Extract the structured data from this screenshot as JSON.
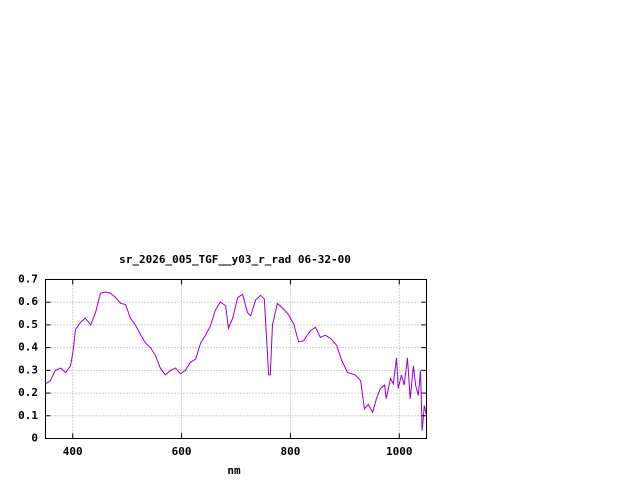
{
  "chart_data": {
    "type": "line",
    "title": "sr_2026_005_TGF__y03_r_rad 06-32-00",
    "x_label": "nm",
    "x": [
      350,
      359,
      368,
      378,
      387,
      396,
      401,
      405,
      414,
      423,
      433,
      442,
      451,
      460,
      469,
      479,
      488,
      497,
      506,
      515,
      525,
      534,
      543,
      552,
      561,
      570,
      580,
      589,
      598,
      607,
      616,
      626,
      635,
      644,
      653,
      662,
      671,
      681,
      686,
      694,
      703,
      712,
      721,
      727,
      736,
      745,
      752,
      760,
      763,
      767,
      776,
      785,
      795,
      806,
      815,
      824,
      837,
      846,
      855,
      864,
      874,
      885,
      894,
      905,
      919,
      929,
      936,
      943,
      951,
      958,
      965,
      973,
      976,
      984,
      989,
      995,
      998,
      1004,
      1009,
      1015,
      1020,
      1026,
      1030,
      1035,
      1039,
      1042,
      1046,
      1050
    ],
    "series": [
      {
        "color": "#9400d3",
        "values": [
          0.24,
          0.255,
          0.3,
          0.31,
          0.29,
          0.32,
          0.39,
          0.48,
          0.51,
          0.53,
          0.5,
          0.555,
          0.64,
          0.645,
          0.64,
          0.62,
          0.595,
          0.59,
          0.53,
          0.5,
          0.455,
          0.42,
          0.4,
          0.365,
          0.31,
          0.28,
          0.3,
          0.31,
          0.285,
          0.3,
          0.335,
          0.35,
          0.42,
          0.455,
          0.495,
          0.565,
          0.6,
          0.585,
          0.485,
          0.53,
          0.62,
          0.635,
          0.555,
          0.54,
          0.61,
          0.63,
          0.615,
          0.28,
          0.28,
          0.5,
          0.595,
          0.575,
          0.55,
          0.505,
          0.425,
          0.43,
          0.475,
          0.49,
          0.445,
          0.455,
          0.44,
          0.41,
          0.345,
          0.29,
          0.28,
          0.255,
          0.13,
          0.15,
          0.115,
          0.175,
          0.22,
          0.235,
          0.175,
          0.265,
          0.24,
          0.355,
          0.22,
          0.28,
          0.235,
          0.355,
          0.175,
          0.32,
          0.235,
          0.19,
          0.3,
          0.035,
          0.145,
          0.1
        ]
      }
    ],
    "xlim": [
      350,
      1050
    ],
    "xticks": [
      400,
      600,
      800,
      1000
    ],
    "ylim": [
      0,
      0.7
    ],
    "yticks": [
      0,
      0.1,
      0.2,
      0.3,
      0.4,
      0.5,
      0.6,
      0.7
    ],
    "grid": true
  }
}
